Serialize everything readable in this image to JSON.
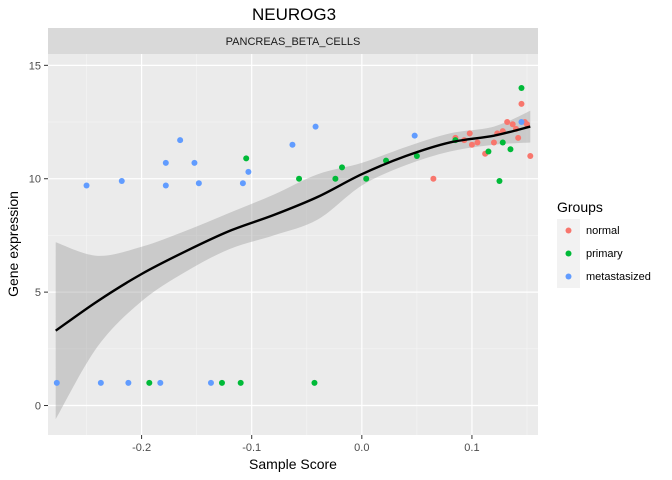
{
  "chart_data": {
    "type": "scatter",
    "title": "NEUROG3",
    "facet_label": "PANCREAS_BETA_CELLS",
    "xlabel": "Sample Score",
    "ylabel": "Gene expression",
    "xlim": [
      -0.285,
      0.16
    ],
    "ylim": [
      -1.3,
      15.5
    ],
    "x_ticks": [
      -0.2,
      -0.1,
      0.0,
      0.1
    ],
    "x_tick_labels": [
      "-0.2",
      "-0.1",
      "0.0",
      "0.1"
    ],
    "y_ticks": [
      0,
      5,
      10,
      15
    ],
    "y_tick_labels": [
      "0",
      "5",
      "10",
      "15"
    ],
    "grid": true,
    "legend": {
      "title": "Groups",
      "position": "right",
      "entries": [
        {
          "name": "normal",
          "color": "#F8766D"
        },
        {
          "name": "primary",
          "color": "#00BA38"
        },
        {
          "name": "metastasized",
          "color": "#619CFF"
        }
      ]
    },
    "series": [
      {
        "name": "normal",
        "color": "#F8766D",
        "points": [
          [
            0.065,
            10.0
          ],
          [
            0.085,
            11.8
          ],
          [
            0.093,
            11.7
          ],
          [
            0.098,
            12.0
          ],
          [
            0.1,
            11.5
          ],
          [
            0.105,
            11.6
          ],
          [
            0.112,
            11.1
          ],
          [
            0.12,
            11.6
          ],
          [
            0.123,
            12.0
          ],
          [
            0.128,
            12.1
          ],
          [
            0.132,
            12.5
          ],
          [
            0.137,
            12.4
          ],
          [
            0.14,
            12.2
          ],
          [
            0.142,
            11.8
          ],
          [
            0.145,
            13.3
          ],
          [
            0.148,
            12.5
          ],
          [
            0.15,
            12.4
          ],
          [
            0.153,
            11.0
          ]
        ]
      },
      {
        "name": "primary",
        "color": "#00BA38",
        "points": [
          [
            -0.193,
            1.0
          ],
          [
            -0.127,
            1.0
          ],
          [
            -0.11,
            1.0
          ],
          [
            -0.043,
            1.0
          ],
          [
            -0.105,
            10.9
          ],
          [
            -0.057,
            10.0
          ],
          [
            -0.024,
            10.0
          ],
          [
            -0.018,
            10.5
          ],
          [
            0.004,
            10.0
          ],
          [
            0.022,
            10.8
          ],
          [
            0.05,
            11.0
          ],
          [
            0.085,
            11.7
          ],
          [
            0.115,
            11.2
          ],
          [
            0.125,
            9.9
          ],
          [
            0.128,
            11.6
          ],
          [
            0.135,
            11.3
          ],
          [
            0.145,
            14.0
          ]
        ]
      },
      {
        "name": "metastasized",
        "color": "#619CFF",
        "points": [
          [
            -0.277,
            1.0
          ],
          [
            -0.237,
            1.0
          ],
          [
            -0.212,
            1.0
          ],
          [
            -0.183,
            1.0
          ],
          [
            -0.137,
            1.0
          ],
          [
            -0.25,
            9.7
          ],
          [
            -0.218,
            9.9
          ],
          [
            -0.178,
            10.7
          ],
          [
            -0.178,
            9.7
          ],
          [
            -0.165,
            11.7
          ],
          [
            -0.152,
            10.7
          ],
          [
            -0.148,
            9.8
          ],
          [
            -0.108,
            9.8
          ],
          [
            -0.103,
            10.3
          ],
          [
            -0.063,
            11.5
          ],
          [
            -0.042,
            12.3
          ],
          [
            0.048,
            11.9
          ],
          [
            0.145,
            12.5
          ]
        ]
      }
    ],
    "smooth_fit": {
      "x": [
        -0.278,
        -0.24,
        -0.2,
        -0.16,
        -0.12,
        -0.08,
        -0.04,
        0.0,
        0.04,
        0.08,
        0.12,
        0.153
      ],
      "y": [
        3.3,
        4.6,
        5.8,
        6.8,
        7.7,
        8.4,
        9.2,
        10.2,
        11.0,
        11.6,
        11.9,
        12.3
      ],
      "ci_lower": [
        -0.6,
        2.6,
        4.6,
        5.9,
        6.9,
        7.5,
        8.2,
        9.7,
        10.6,
        11.2,
        11.5,
        11.6
      ],
      "ci_upper": [
        7.2,
        6.6,
        7.0,
        7.7,
        8.5,
        9.3,
        10.2,
        10.7,
        11.4,
        12.0,
        12.3,
        13.0
      ]
    }
  }
}
